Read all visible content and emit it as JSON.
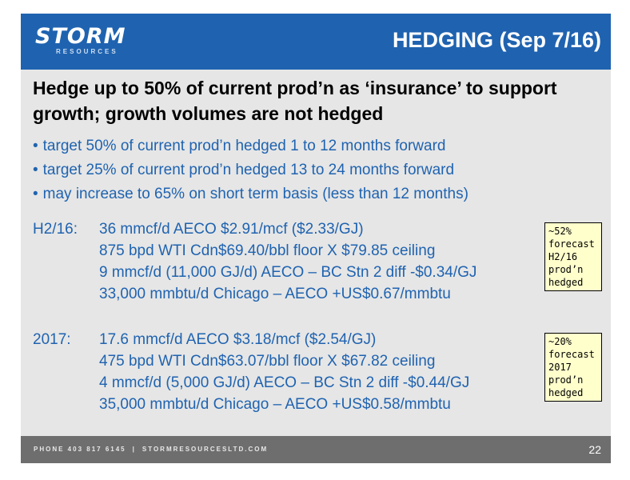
{
  "header": {
    "logo_word": "STORM",
    "logo_sub": "RESOURCES",
    "title": "HEDGING (Sep 7/16)"
  },
  "headline": "Hedge up to 50% of current prod’n as ‘insurance’ to support growth; growth volumes are not hedged",
  "bullets": [
    "target 50% of current prod’n hedged 1 to 12 months forward",
    "target 25% of current prod’n hedged 13 to 24 months forward",
    "may increase to 65% on short term basis (less than 12 months)"
  ],
  "hedges": [
    {
      "label": "H2/16:",
      "lines": [
        "36 mmcf/d AECO $2.91/mcf ($2.33/GJ)",
        "875 bpd WTI Cdn$69.40/bbl floor X $79.85 ceiling",
        "9 mmcf/d (11,000 GJ/d) AECO – BC Stn 2 diff -$0.34/GJ",
        "33,000 mmbtu/d Chicago – AECO +US$0.67/mmbtu"
      ],
      "note": [
        "~52%",
        "forecast",
        "H2/16",
        "prod’n",
        "hedged"
      ]
    },
    {
      "label": "2017:",
      "lines": [
        "17.6 mmcf/d AECO $3.18/mcf ($2.54/GJ)",
        "475 bpd WTI Cdn$63.07/bbl floor X $67.82 ceiling",
        "4 mmcf/d (5,000 GJ/d) AECO – BC Stn 2 diff -$0.44/GJ",
        "35,000 mmbtu/d Chicago – AECO +US$0.58/mmbtu"
      ],
      "note": [
        "~20%",
        "forecast",
        "2017",
        "prod’n",
        "hedged"
      ]
    }
  ],
  "footer": {
    "phone": "PHONE 403 817 6145",
    "separator": "|",
    "website": "STORMRESOURCESLTD.COM",
    "page_number": "22"
  },
  "colors": {
    "brand_blue": "#1f63b0",
    "slide_bg": "#e6e6e6",
    "footer_bg": "#6e6e6e",
    "note_bg": "#ffffcc"
  }
}
